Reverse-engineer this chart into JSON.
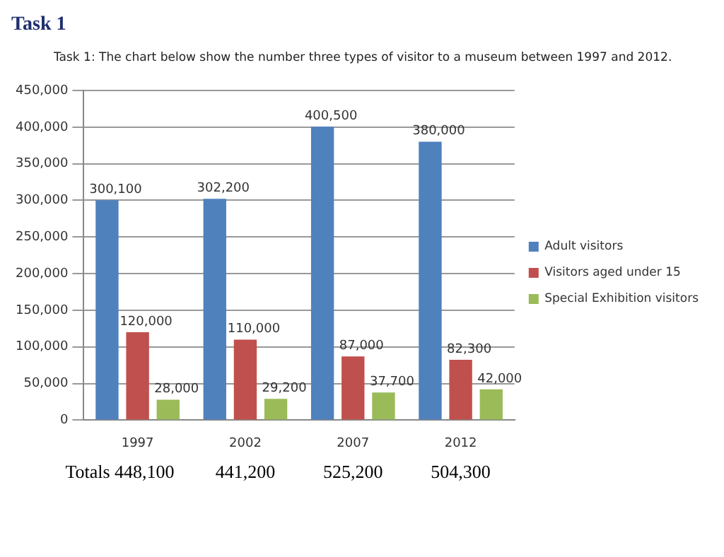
{
  "chart_data": {
    "type": "bar",
    "title": "Task 1",
    "subtitle": "Task 1: The chart below show the number three types of visitor to a museum between 1997 and 2012.",
    "categories": [
      "1997",
      "2002",
      "2007",
      "2012"
    ],
    "series": [
      {
        "name": "Adult visitors",
        "color": "#4f81bd",
        "values": [
          300100,
          302200,
          400500,
          380000
        ],
        "value_labels": [
          "300,100",
          "302,200",
          "400,500",
          "380,000"
        ]
      },
      {
        "name": "Visitors aged under 15",
        "color": "#c0504d",
        "values": [
          120000,
          110000,
          87000,
          82300
        ],
        "value_labels": [
          "120,000",
          "110,000",
          "87,000",
          "82,300"
        ]
      },
      {
        "name": "Special Exhibition visitors",
        "color": "#9bbb59",
        "values": [
          28000,
          29200,
          37700,
          42000
        ],
        "value_labels": [
          "28,000",
          "29,200",
          "37,700",
          "42,000"
        ]
      }
    ],
    "ylim": [
      0,
      450000
    ],
    "yticks": [
      {
        "value": 0,
        "label": "0"
      },
      {
        "value": 50000,
        "label": "50,000"
      },
      {
        "value": 100000,
        "label": "100,000"
      },
      {
        "value": 150000,
        "label": "150,000"
      },
      {
        "value": 200000,
        "label": "200,000"
      },
      {
        "value": 250000,
        "label": "250,000"
      },
      {
        "value": 300000,
        "label": "300,000"
      },
      {
        "value": 350000,
        "label": "350,000"
      },
      {
        "value": 400000,
        "label": "400,000"
      },
      {
        "value": 450000,
        "label": "450,000"
      }
    ],
    "grid": "y",
    "legend": "right",
    "annotations": [
      "Totals 448,100",
      "441,200",
      "525,200",
      "504,300"
    ]
  }
}
